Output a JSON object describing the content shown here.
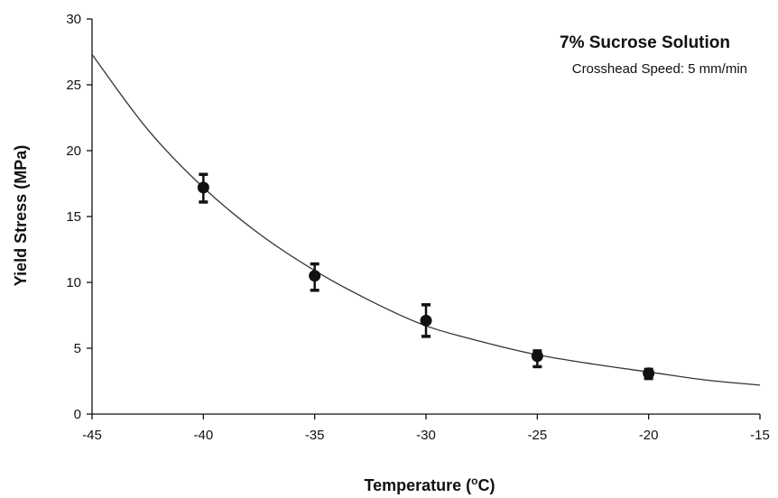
{
  "chart_data": {
    "type": "scatter",
    "title": "7% Sucrose Solution",
    "subtitle": "Crosshead Speed: 5 mm/min",
    "xlabel": "Temperature (",
    "xlabel_sup": "o",
    "xlabel_unit": "C)",
    "ylabel": "Yield Stress (MPa)",
    "xlim": [
      -45,
      -15
    ],
    "ylim": [
      0,
      30
    ],
    "x_ticks": [
      -45,
      -40,
      -35,
      -30,
      -25,
      -20,
      -15
    ],
    "y_ticks": [
      0,
      5,
      10,
      15,
      20,
      25,
      30
    ],
    "grid": false,
    "series": [
      {
        "type": "scatter",
        "x": [
          -40,
          -35,
          -30,
          -25,
          -20
        ],
        "y": [
          17.2,
          10.5,
          7.1,
          4.4,
          3.1
        ],
        "err_low": [
          16.1,
          9.4,
          5.9,
          3.6,
          2.7
        ],
        "err_high": [
          18.2,
          11.4,
          8.3,
          4.8,
          3.4
        ]
      },
      {
        "type": "line",
        "x": [
          -45,
          -42.5,
          -40,
          -37.5,
          -35,
          -32.5,
          -30,
          -27.5,
          -25,
          -22.5,
          -20,
          -17.5,
          -15
        ],
        "y": [
          27.3,
          21.6,
          17.2,
          13.7,
          10.9,
          8.6,
          6.7,
          5.5,
          4.5,
          3.8,
          3.2,
          2.6,
          2.2
        ]
      }
    ]
  }
}
